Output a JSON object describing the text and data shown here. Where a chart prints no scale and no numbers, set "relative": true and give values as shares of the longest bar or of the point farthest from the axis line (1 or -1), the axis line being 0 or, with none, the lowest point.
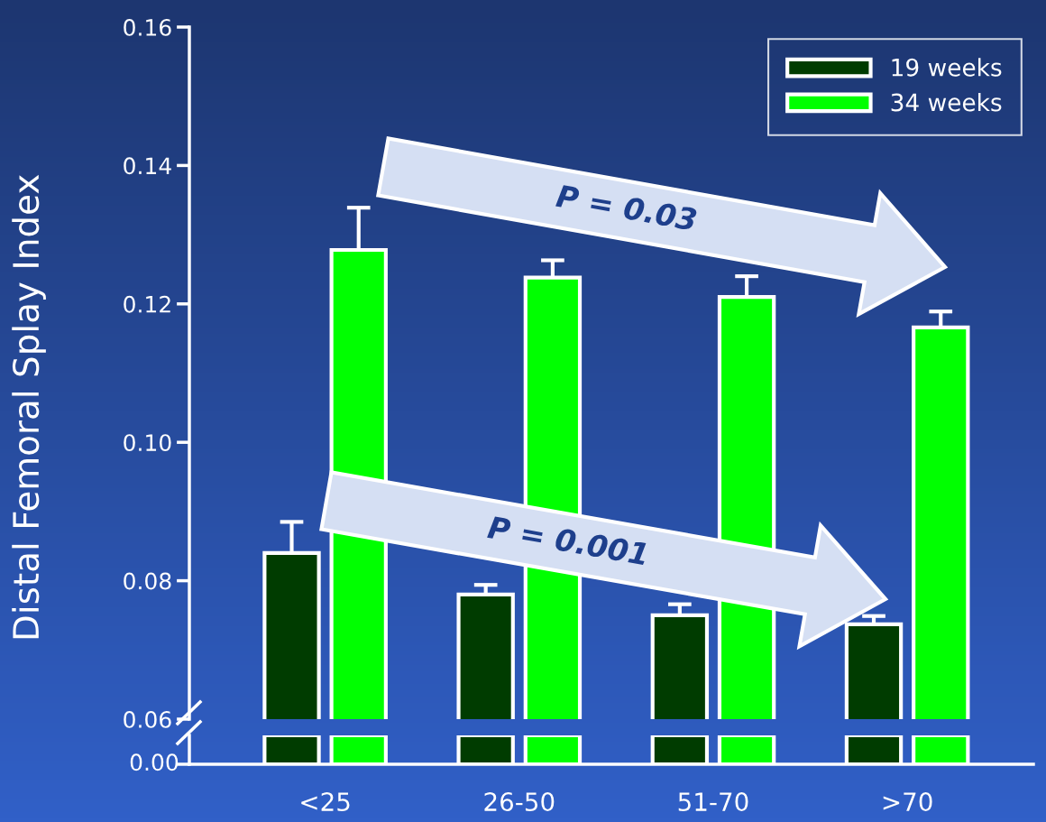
{
  "chart_data": [
    {
      "type": "bar",
      "ylabel": "Distal Femoral Splay Index",
      "categories": [
        null,
        null,
        null,
        null
      ],
      "series": [
        {
          "name": "19 weeks",
          "color": "#003c00",
          "values": [
            0.084,
            0.078,
            0.075,
            0.0737
          ],
          "errors": [
            [
              0.084,
              0.0885
            ],
            [
              0.078,
              0.0794
            ],
            [
              0.075,
              0.0766
            ],
            [
              0.0737,
              0.0749
            ]
          ]
        },
        {
          "name": "34 weeks",
          "color": "#00ff00",
          "values": [
            0.1278,
            0.1238,
            0.121,
            0.1166
          ],
          "errors": [
            [
              0.1278,
              0.1339
            ],
            [
              0.1238,
              0.1263
            ],
            [
              0.121,
              0.124
            ],
            [
              0.1166,
              0.1189
            ]
          ]
        }
      ],
      "ylim": [
        0.06,
        0.16
      ],
      "yticks": [
        {
          "value": 0.06,
          "label": "0.06"
        },
        {
          "value": 0.08,
          "label": "0.08"
        },
        {
          "value": 0.1,
          "label": "0.10"
        },
        {
          "value": 0.12,
          "label": "0.12"
        },
        {
          "value": 0.14,
          "label": "0.14"
        },
        {
          "value": 0.16,
          "label": "0.16"
        }
      ],
      "tick_labels": "y",
      "legend": "top right",
      "grid": false,
      "annotations": [
        "P = 0.03",
        "P = 0.001"
      ]
    },
    {
      "type": "bar",
      "categories": [
        "<25",
        "26-50",
        "51-70",
        ">70"
      ],
      "relative": true,
      "series": [
        {
          "color": "#003c00",
          "values": [
            1,
            1,
            1,
            1
          ]
        },
        {
          "color": "#00ff00",
          "values": [
            1,
            1,
            1,
            1
          ]
        }
      ],
      "annotations": [
        "0.00"
      ],
      "grid": false
    }
  ]
}
